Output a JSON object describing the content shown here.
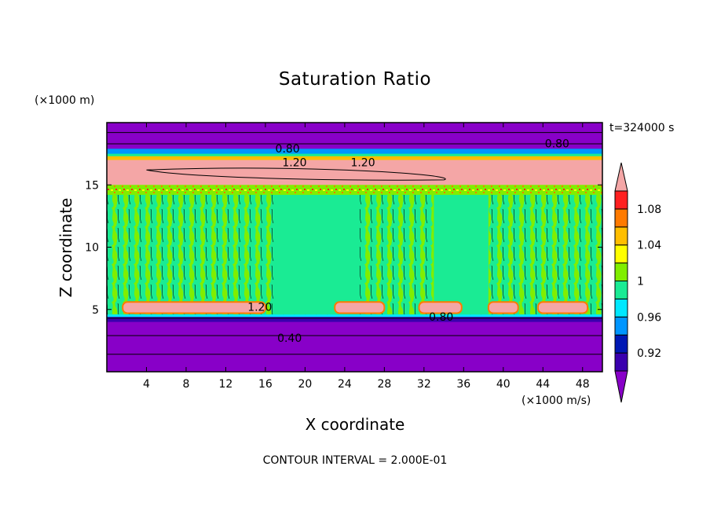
{
  "chart_data": {
    "type": "heatmap",
    "title": "Saturation Ratio",
    "xlabel": "X coordinate",
    "ylabel": "Z coordinate",
    "x_unit": "(×1000 m/s)",
    "y_unit": "(×1000 m)",
    "time_label": "t=324000 s",
    "footnote": "CONTOUR INTERVAL = 2.000E-01",
    "xlim": [
      0,
      50
    ],
    "ylim": [
      0,
      20
    ],
    "x_ticks": [
      4,
      8,
      12,
      16,
      20,
      24,
      28,
      32,
      36,
      40,
      44,
      48
    ],
    "y_ticks": [
      5,
      10,
      15
    ],
    "colorbar": {
      "levels": [
        0.92,
        0.94,
        0.96,
        0.98,
        1.0,
        1.02,
        1.04,
        1.06,
        1.08,
        1.1
      ],
      "labels": [
        "0.92",
        "0.96",
        "1",
        "1.04",
        "1.08"
      ],
      "colors": [
        "#8800c8",
        "#3a00ae",
        "#0018b4",
        "#0096ff",
        "#00e8ff",
        "#1aeb94",
        "#80ee00",
        "#ffff00",
        "#ffbe00",
        "#ff7a00",
        "#ff2020",
        "#f4a6a6"
      ]
    },
    "contour_labels": [
      "0.80",
      "1.20",
      "1.20",
      "0.80",
      "1.20",
      "0.80",
      "0.40"
    ],
    "colors": {
      "low": "#8800c8",
      "near_saturation": "#1aeb94",
      "slightly_super": "#80ee00",
      "high": "#f4a6a6"
    }
  }
}
